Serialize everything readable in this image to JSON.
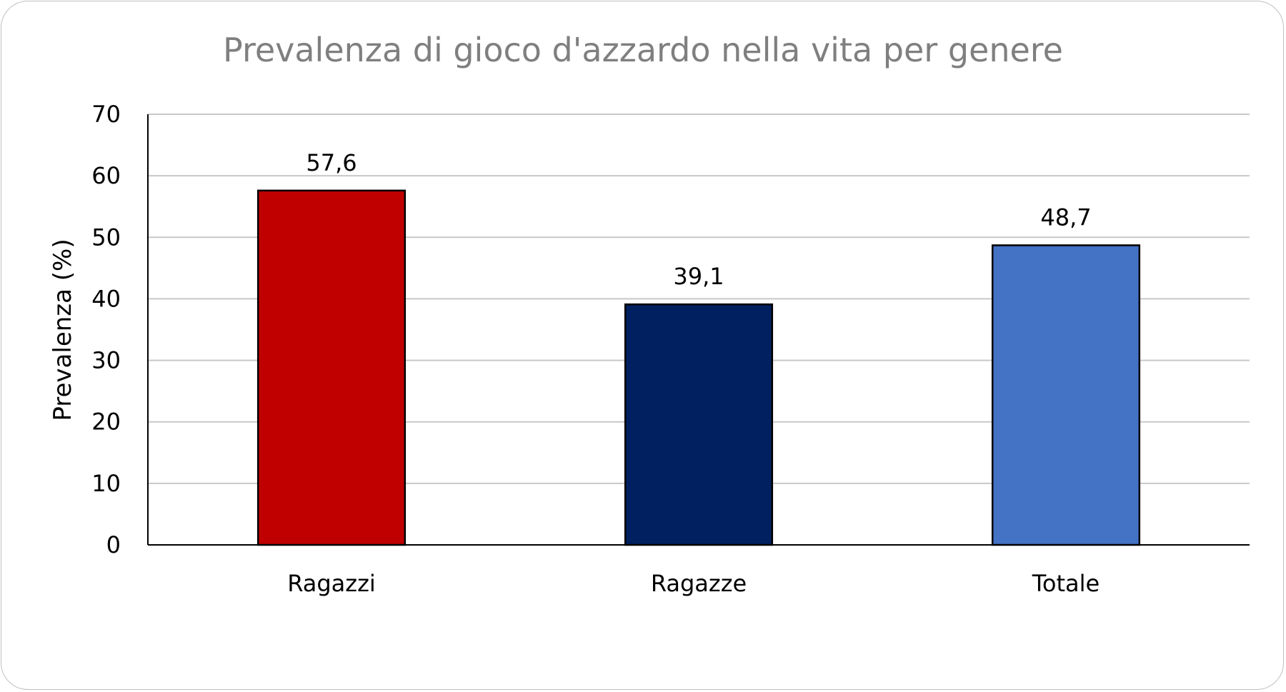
{
  "chart_data": {
    "type": "bar",
    "title": "Prevalenza di gioco d'azzardo nella vita per genere",
    "xlabel": "",
    "ylabel": "Prevalenza (%)",
    "ylim": [
      0,
      70
    ],
    "yticks": [
      "0",
      "10",
      "20",
      "30",
      "40",
      "50",
      "60",
      "70"
    ],
    "grid": true,
    "categories": [
      "Ragazzi",
      "Ragazze",
      "Totale"
    ],
    "values": [
      57.6,
      39.1,
      48.7
    ],
    "data_labels": [
      "57,6",
      "39,1",
      "48,7"
    ],
    "colors": [
      "#c00000",
      "#002060",
      "#4472c4"
    ]
  }
}
